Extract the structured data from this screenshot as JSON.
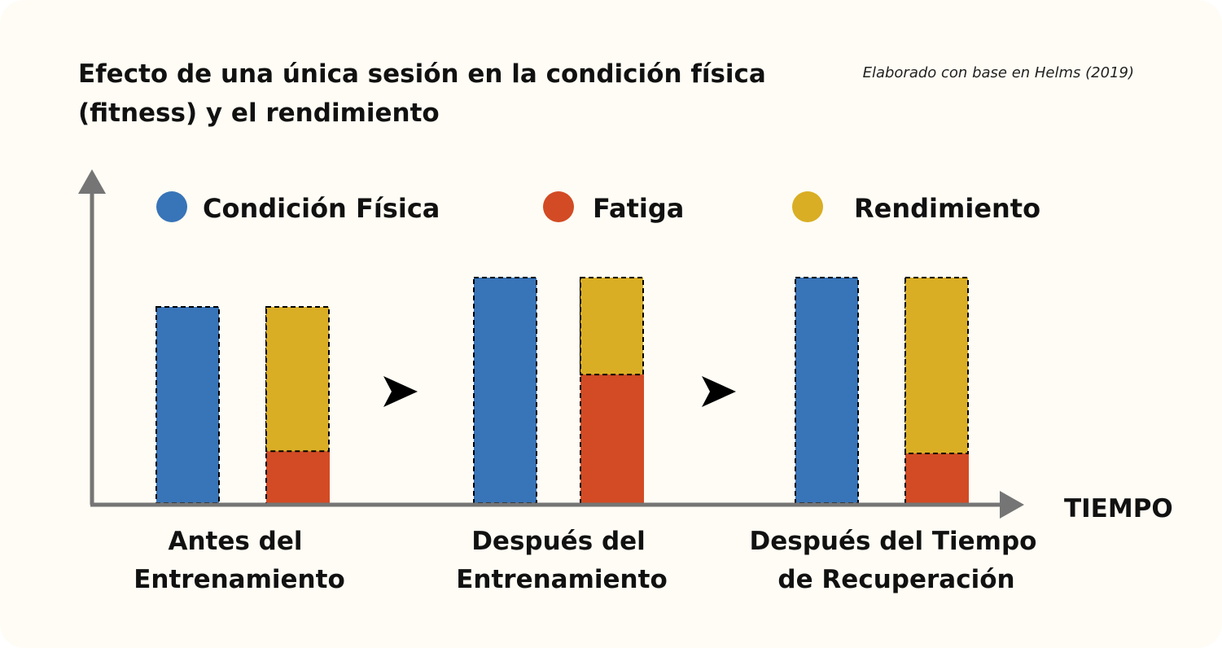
{
  "chart_data": {
    "type": "bar",
    "stacked_second_bar": true,
    "title": [
      "Efecto de una única sesión en la condición física",
      "(fitness) y el rendimiento"
    ],
    "source_note": "Elaborado con base en Helms (2019)",
    "xlabel": "TIEMPO",
    "ylabel": "",
    "ylim": [
      0,
      145
    ],
    "grid": false,
    "legend_position": "top",
    "categories": [
      [
        "Antes del",
        "Entrenamiento"
      ],
      [
        "Después del",
        "Entrenamiento"
      ],
      [
        "Después del Tiempo",
        "de Recuperación"
      ]
    ],
    "series": [
      {
        "name": "Condición Física",
        "color": "#3874b8",
        "values": [
          87,
          100,
          100
        ]
      },
      {
        "name": "Fatiga",
        "color": "#d24b24",
        "values": [
          23,
          57,
          22
        ]
      },
      {
        "name": "Rendimiento",
        "color": "#d9ae24",
        "values": [
          64,
          43,
          78
        ]
      }
    ],
    "axis_color": "#757575",
    "arrow_icon": "arrowhead-right-icon"
  }
}
